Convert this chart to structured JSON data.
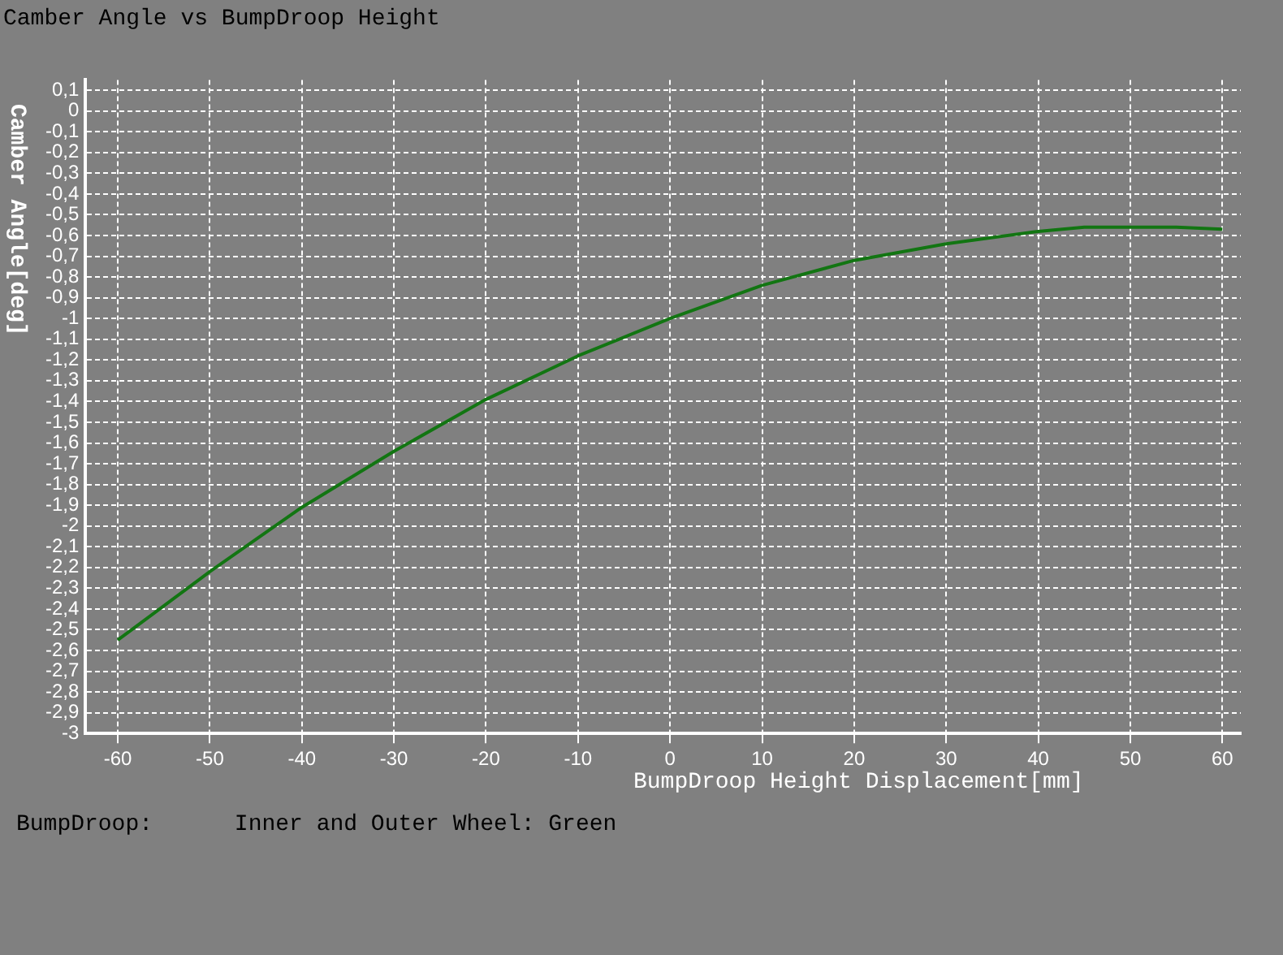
{
  "chart_data": {
    "type": "line",
    "title": "Camber Angle vs BumpDroop Height",
    "xlabel": "BumpDroop Height Displacement[mm]",
    "ylabel": "Camber Angle[deg]",
    "annotations": [
      "BumpDroop:      Inner and Outer Wheel: Green"
    ],
    "x": [
      -60,
      -50,
      -40,
      -30,
      -20,
      -10,
      0,
      10,
      20,
      30,
      40,
      45,
      50,
      55,
      60
    ],
    "series": [
      {
        "color": "#127512",
        "values": [
          -2.55,
          -2.22,
          -1.91,
          -1.64,
          -1.39,
          -1.18,
          -1.0,
          -0.84,
          -0.72,
          -0.64,
          -0.58,
          -0.56,
          -0.56,
          -0.56,
          -0.57
        ]
      }
    ],
    "xlim": [
      -63.5,
      62
    ],
    "ylim": [
      -3,
      0.15
    ],
    "xticks": [
      -60,
      -50,
      -40,
      -30,
      -20,
      -10,
      0,
      10,
      20,
      30,
      40,
      50,
      60
    ],
    "yticks": [
      {
        "value": 0.1,
        "label": "0,1"
      },
      0,
      {
        "value": -0.1,
        "label": "-0,1"
      },
      {
        "value": -0.2,
        "label": "-0,2"
      },
      {
        "value": -0.3,
        "label": "-0,3"
      },
      {
        "value": -0.4,
        "label": "-0,4"
      },
      {
        "value": -0.5,
        "label": "-0,5"
      },
      {
        "value": -0.6,
        "label": "-0,6"
      },
      {
        "value": -0.7,
        "label": "-0,7"
      },
      {
        "value": -0.8,
        "label": "-0,8"
      },
      {
        "value": -0.9,
        "label": "-0,9"
      },
      -1,
      {
        "value": -1.1,
        "label": "-1,1"
      },
      {
        "value": -1.2,
        "label": "-1,2"
      },
      {
        "value": -1.3,
        "label": "-1,3"
      },
      {
        "value": -1.4,
        "label": "-1,4"
      },
      {
        "value": -1.5,
        "label": "-1,5"
      },
      {
        "value": -1.6,
        "label": "-1,6"
      },
      {
        "value": -1.7,
        "label": "-1,7"
      },
      {
        "value": -1.8,
        "label": "-1,8"
      },
      {
        "value": -1.9,
        "label": "-1,9"
      },
      -2,
      {
        "value": -2.1,
        "label": "-2,1"
      },
      {
        "value": -2.2,
        "label": "-2,2"
      },
      {
        "value": -2.3,
        "label": "-2,3"
      },
      {
        "value": -2.4,
        "label": "-2,4"
      },
      {
        "value": -2.5,
        "label": "-2,5"
      },
      {
        "value": -2.6,
        "label": "-2,6"
      },
      {
        "value": -2.7,
        "label": "-2,7"
      },
      {
        "value": -2.8,
        "label": "-2,8"
      },
      {
        "value": -2.9,
        "label": "-2,9"
      },
      -3
    ],
    "grid": true,
    "line_style": "solid"
  }
}
